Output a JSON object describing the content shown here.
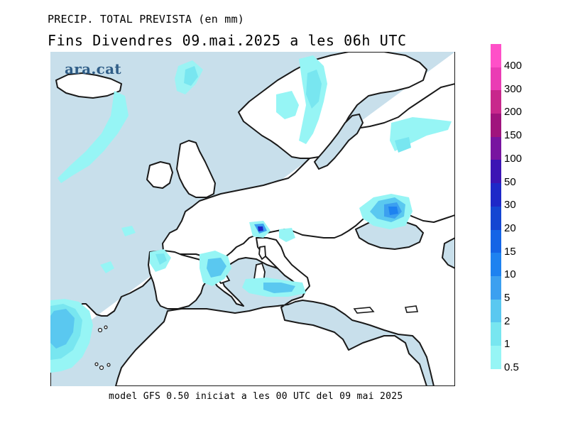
{
  "title": "PRECIP. TOTAL PREVISTA (en mm)",
  "subtitle": "Fins Divendres 09.mai.2025 a les 06h UTC",
  "logo": "ara.cat",
  "footer": "model GFS 0.50 iniciat a les 00 UTC del 09 mai 2025",
  "colors": {
    "ocean": "#c8dfeb",
    "land": "#ffffff",
    "coastline": "#1a1a1a"
  },
  "legend": {
    "levels": [
      {
        "label": "400",
        "color": "#ff50c8"
      },
      {
        "label": "300",
        "color": "#ea3cb4"
      },
      {
        "label": "200",
        "color": "#c8288c"
      },
      {
        "label": "150",
        "color": "#a0147d"
      },
      {
        "label": "100",
        "color": "#7814a0"
      },
      {
        "label": "50",
        "color": "#3c14b4"
      },
      {
        "label": "30",
        "color": "#1e28c8"
      },
      {
        "label": "20",
        "color": "#1446d2"
      },
      {
        "label": "15",
        "color": "#1464e6"
      },
      {
        "label": "10",
        "color": "#1e82f0"
      },
      {
        "label": "5",
        "color": "#3ca0f0"
      },
      {
        "label": "2",
        "color": "#5ac8f0"
      },
      {
        "label": "1",
        "color": "#78e6f0"
      },
      {
        "label": "0.5",
        "color": "#96f5f5"
      }
    ]
  }
}
